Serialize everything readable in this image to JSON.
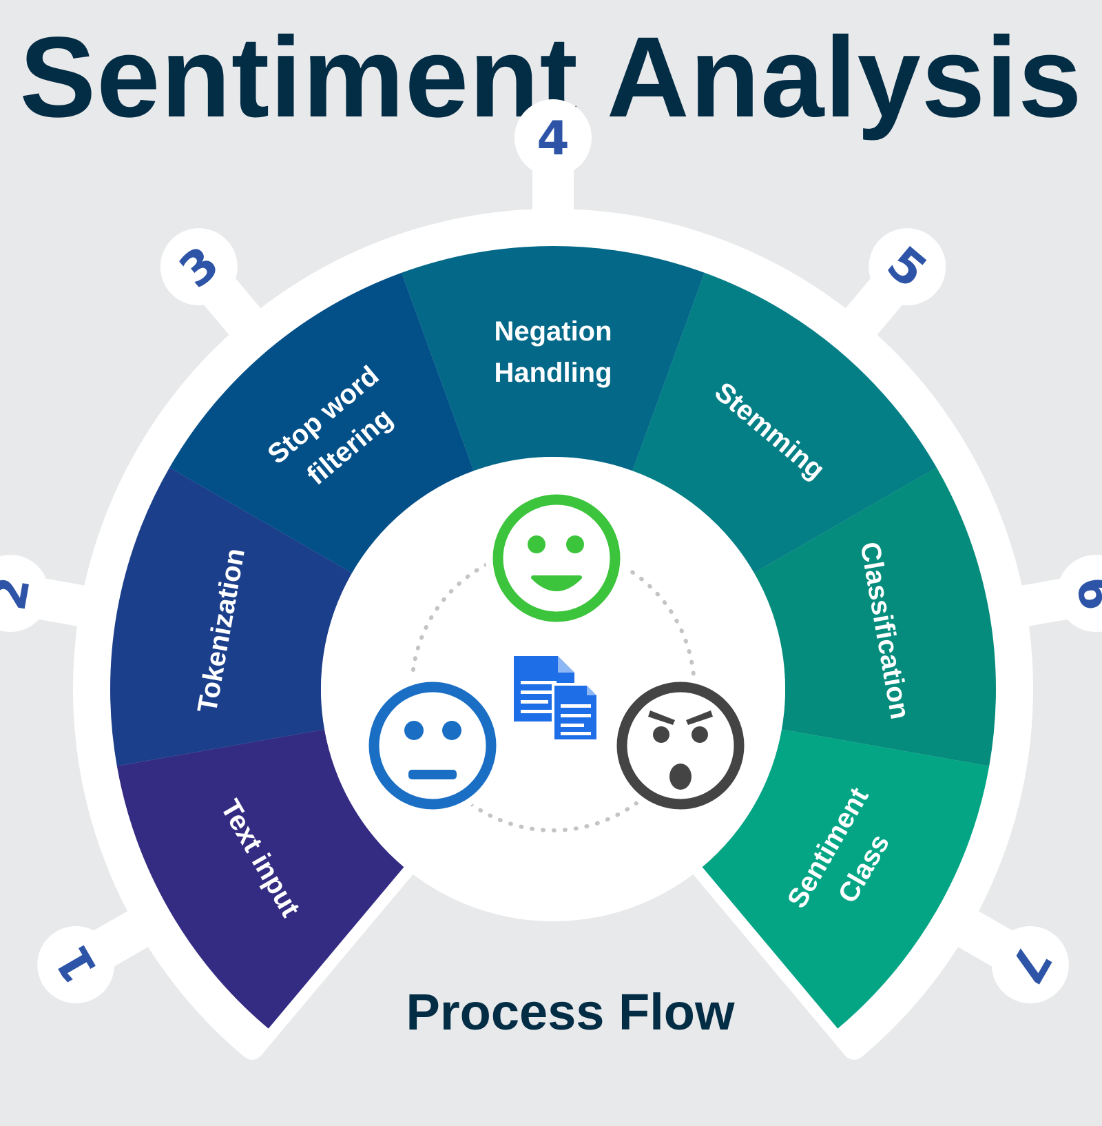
{
  "title": "Sentiment Analysis",
  "footer": "Process Flow",
  "steps": [
    {
      "number": "1",
      "label_lines": [
        "Text input"
      ],
      "color": "#342c82"
    },
    {
      "number": "2",
      "label_lines": [
        "Tokenization"
      ],
      "color": "#1b3f8a"
    },
    {
      "number": "3",
      "label_lines": [
        "Stop word",
        "filtering"
      ],
      "color": "#035089"
    },
    {
      "number": "4",
      "label_lines": [
        "Negation",
        "Handling"
      ],
      "color": "#046888"
    },
    {
      "number": "5",
      "label_lines": [
        "Stemming"
      ],
      "color": "#047f86"
    },
    {
      "number": "6",
      "label_lines": [
        "Classification"
      ],
      "color": "#058c7c"
    },
    {
      "number": "7",
      "label_lines": [
        "Sentiment",
        "Class"
      ],
      "color": "#04a585"
    }
  ],
  "center": {
    "icons": [
      {
        "name": "happy-face-icon",
        "color": "#3cc43c"
      },
      {
        "name": "neutral-face-icon",
        "color": "#1a6fc4"
      },
      {
        "name": "angry-face-icon",
        "color": "#444444"
      },
      {
        "name": "document-icon",
        "color": "#1e6ee8"
      }
    ]
  },
  "colors": {
    "title": "#032c45",
    "numbers": "#2d54a6",
    "background": "#e8e9ea"
  }
}
